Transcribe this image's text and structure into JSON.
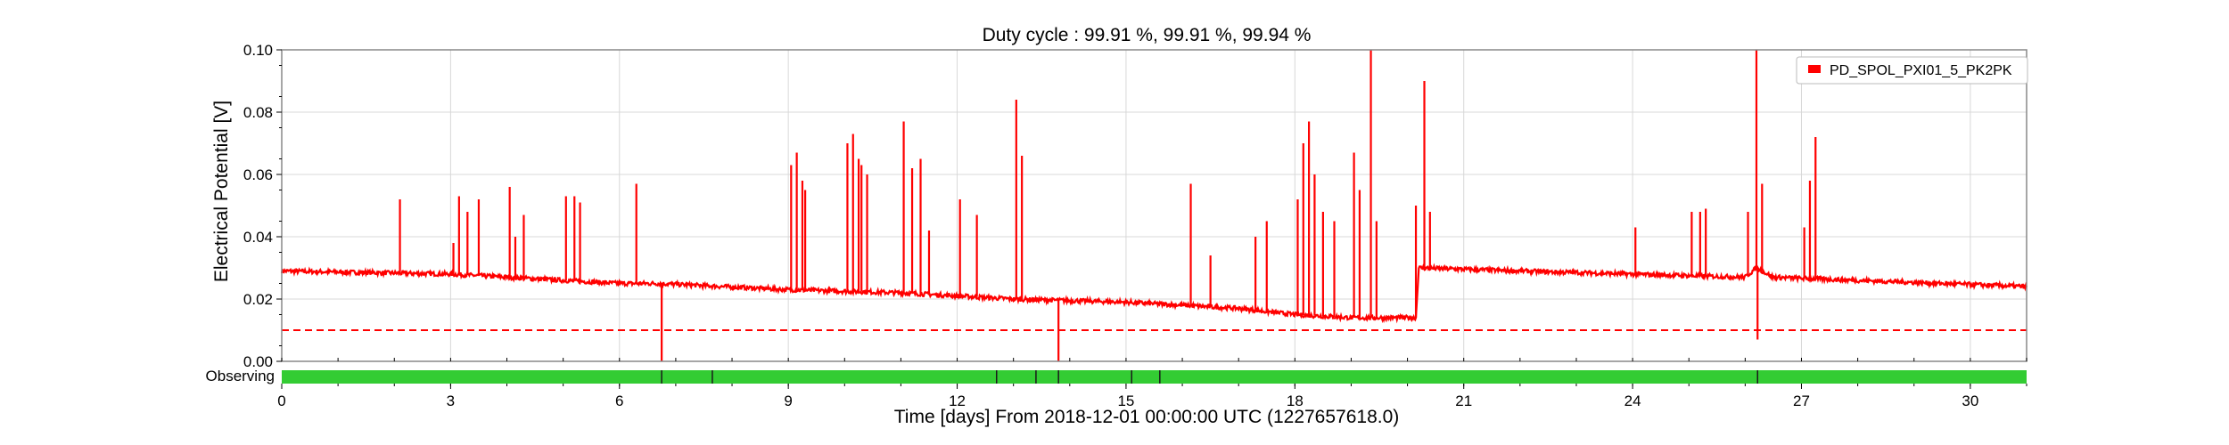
{
  "chart_data": {
    "type": "line",
    "title": "Duty cycle : 99.91 %, 99.91 %, 99.94 %",
    "xlabel": "Time [days] From 2018-12-01 00:00:00 UTC (1227657618.0)",
    "ylabel": "Electrical Potential [V]",
    "xlim": [
      0,
      31
    ],
    "ylim": [
      0,
      0.1
    ],
    "x_ticks": [
      0,
      3,
      6,
      9,
      12,
      15,
      18,
      21,
      24,
      27,
      30
    ],
    "x_tick_labels": [
      "0",
      "3",
      "6",
      "9",
      "12",
      "15",
      "18",
      "21",
      "24",
      "27",
      "30"
    ],
    "y_ticks": [
      0,
      0.02,
      0.04,
      0.06,
      0.08,
      0.1
    ],
    "y_tick_labels": [
      "0.00",
      "0.02",
      "0.04",
      "0.06",
      "0.08",
      "0.10"
    ],
    "grid": true,
    "legend_position": "top-right",
    "series": [
      {
        "name": "PD_SPOL_PXI01_5_PK2PK",
        "color": "#ff0000",
        "baseline": [
          [
            0,
            0.029
          ],
          [
            3,
            0.028
          ],
          [
            6,
            0.025
          ],
          [
            6.7,
            0.025
          ],
          [
            9,
            0.023
          ],
          [
            11,
            0.022
          ],
          [
            12,
            0.021
          ],
          [
            13,
            0.02
          ],
          [
            15,
            0.019
          ],
          [
            16,
            0.018
          ],
          [
            17,
            0.017
          ],
          [
            18,
            0.015
          ],
          [
            19,
            0.014
          ],
          [
            20.15,
            0.014
          ],
          [
            20.2,
            0.03
          ],
          [
            22,
            0.029
          ],
          [
            24,
            0.028
          ],
          [
            26,
            0.027
          ],
          [
            26.2,
            0.03
          ],
          [
            26.5,
            0.027
          ],
          [
            28,
            0.026
          ],
          [
            31,
            0.024
          ]
        ],
        "spikes": [
          [
            2.1,
            0.052
          ],
          [
            3.05,
            0.038
          ],
          [
            3.15,
            0.053
          ],
          [
            3.3,
            0.048
          ],
          [
            3.5,
            0.052
          ],
          [
            4.05,
            0.056
          ],
          [
            4.15,
            0.04
          ],
          [
            4.3,
            0.047
          ],
          [
            5.05,
            0.053
          ],
          [
            5.2,
            0.053
          ],
          [
            5.3,
            0.051
          ],
          [
            6.3,
            0.057
          ],
          [
            9.05,
            0.063
          ],
          [
            9.15,
            0.067
          ],
          [
            9.25,
            0.058
          ],
          [
            9.3,
            0.055
          ],
          [
            10.05,
            0.07
          ],
          [
            10.15,
            0.073
          ],
          [
            10.25,
            0.065
          ],
          [
            10.3,
            0.063
          ],
          [
            10.4,
            0.06
          ],
          [
            11.05,
            0.077
          ],
          [
            11.2,
            0.062
          ],
          [
            11.35,
            0.065
          ],
          [
            11.5,
            0.042
          ],
          [
            12.05,
            0.052
          ],
          [
            12.35,
            0.047
          ],
          [
            13.05,
            0.084
          ],
          [
            13.15,
            0.066
          ],
          [
            16.15,
            0.057
          ],
          [
            16.5,
            0.034
          ],
          [
            17.3,
            0.04
          ],
          [
            17.5,
            0.045
          ],
          [
            18.05,
            0.052
          ],
          [
            18.15,
            0.07
          ],
          [
            18.25,
            0.077
          ],
          [
            18.35,
            0.06
          ],
          [
            18.5,
            0.048
          ],
          [
            18.7,
            0.045
          ],
          [
            19.05,
            0.067
          ],
          [
            19.15,
            0.055
          ],
          [
            19.35,
            0.1
          ],
          [
            19.45,
            0.045
          ],
          [
            20.15,
            0.05
          ],
          [
            20.3,
            0.09
          ],
          [
            20.4,
            0.048
          ],
          [
            24.05,
            0.043
          ],
          [
            25.05,
            0.048
          ],
          [
            25.2,
            0.048
          ],
          [
            25.3,
            0.049
          ],
          [
            26.05,
            0.048
          ],
          [
            26.2,
            0.1
          ],
          [
            26.3,
            0.057
          ],
          [
            27.05,
            0.043
          ],
          [
            27.15,
            0.058
          ],
          [
            27.25,
            0.072
          ]
        ],
        "dips": [
          [
            6.75,
            0.0
          ],
          [
            13.8,
            0.0
          ],
          [
            26.22,
            0.007
          ]
        ]
      }
    ],
    "threshold": {
      "value": 0.01,
      "style": "dashed",
      "color": "#ff0000"
    },
    "segments": {
      "label": "Observing",
      "color": "#33cc33",
      "range": [
        0,
        31
      ],
      "gap_marks": [
        6.75,
        7.65,
        12.7,
        13.4,
        13.8,
        15.1,
        15.6,
        26.22
      ]
    }
  }
}
